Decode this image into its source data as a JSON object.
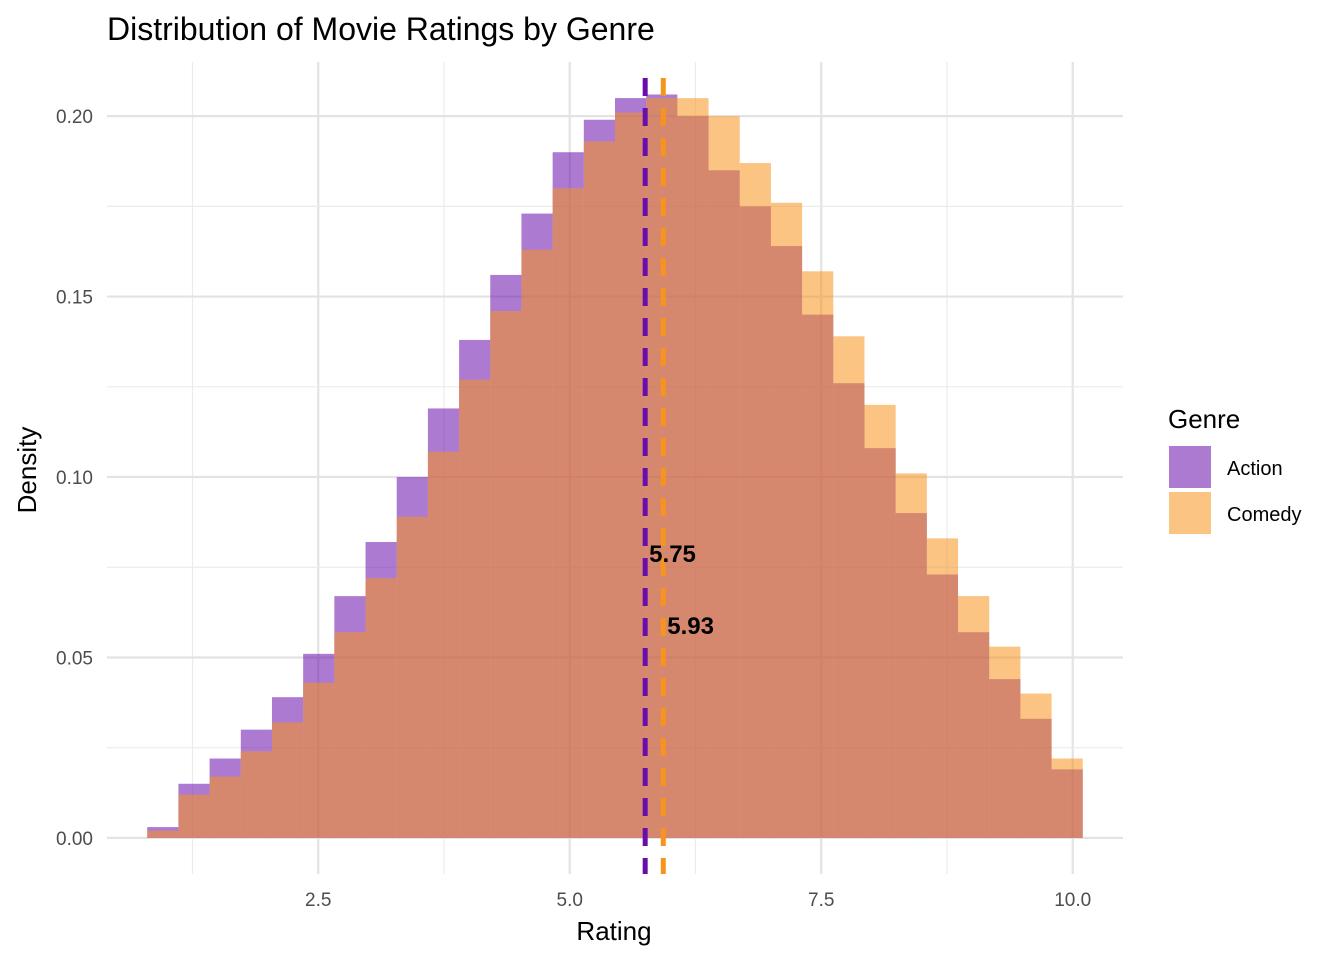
{
  "chart_data": {
    "type": "histogram",
    "title": "Distribution of Movie Ratings by Genre",
    "xlabel": "Rating",
    "ylabel": "Density",
    "xlim": [
      0.4,
      10.5
    ],
    "ylim": [
      -0.01,
      0.215
    ],
    "x_ticks": [
      2.5,
      5.0,
      7.5,
      10.0
    ],
    "x_tick_labels": [
      "2.5",
      "5.0",
      "7.5",
      "10.0"
    ],
    "y_ticks": [
      0.0,
      0.05,
      0.1,
      0.15,
      0.2
    ],
    "y_tick_labels": [
      "0.00",
      "0.05",
      "0.10",
      "0.15",
      "0.20"
    ],
    "grid": true,
    "legend": {
      "title": "Genre",
      "position": "right"
    },
    "bin_edges": [
      0.8,
      1.11,
      1.42,
      1.73,
      2.04,
      2.35,
      2.66,
      2.97,
      3.28,
      3.59,
      3.9,
      4.21,
      4.52,
      4.83,
      5.14,
      5.45,
      5.76,
      6.07,
      6.38,
      6.69,
      7.0,
      7.31,
      7.62,
      7.93,
      8.24,
      8.55,
      8.86,
      9.17,
      9.48,
      9.79,
      10.1
    ],
    "series": [
      {
        "name": "Action",
        "color": "#6a0dad",
        "values": [
          0.003,
          0.015,
          0.022,
          0.03,
          0.039,
          0.051,
          0.067,
          0.082,
          0.1,
          0.119,
          0.138,
          0.156,
          0.173,
          0.19,
          0.199,
          0.205,
          0.206,
          0.2,
          0.185,
          0.175,
          0.164,
          0.145,
          0.126,
          0.108,
          0.09,
          0.073,
          0.057,
          0.044,
          0.033,
          0.019
        ],
        "mean": 5.75,
        "mean_label": "5.75"
      },
      {
        "name": "Comedy",
        "color": "#f7941d",
        "values": [
          0.002,
          0.012,
          0.017,
          0.024,
          0.032,
          0.043,
          0.057,
          0.072,
          0.089,
          0.107,
          0.127,
          0.146,
          0.163,
          0.18,
          0.193,
          0.201,
          0.205,
          0.205,
          0.2,
          0.187,
          0.176,
          0.157,
          0.139,
          0.12,
          0.101,
          0.083,
          0.067,
          0.053,
          0.04,
          0.022
        ],
        "mean": 5.93,
        "mean_label": "5.93"
      }
    ]
  }
}
